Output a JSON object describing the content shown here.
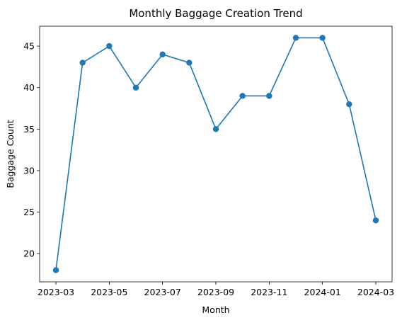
{
  "chart_data": {
    "type": "line",
    "title": "Monthly Baggage Creation Trend",
    "xlabel": "Month",
    "ylabel": "Baggage Count",
    "x": [
      "2023-03",
      "2023-04",
      "2023-05",
      "2023-06",
      "2023-07",
      "2023-08",
      "2023-09",
      "2023-10",
      "2023-11",
      "2023-12",
      "2024-01",
      "2024-02",
      "2024-03"
    ],
    "series": [
      {
        "values": [
          18,
          43,
          45,
          40,
          44,
          43,
          35,
          39,
          39,
          46,
          46,
          38,
          24
        ],
        "color": "#1f77b4"
      }
    ],
    "xticks": [
      "2023-03",
      "2023-05",
      "2023-07",
      "2023-09",
      "2023-11",
      "2024-01",
      "2024-03"
    ],
    "yticks": [
      20,
      25,
      30,
      35,
      40,
      45
    ],
    "ylim": [
      16.6,
      47.4
    ],
    "grid": false,
    "marker": "circle"
  }
}
